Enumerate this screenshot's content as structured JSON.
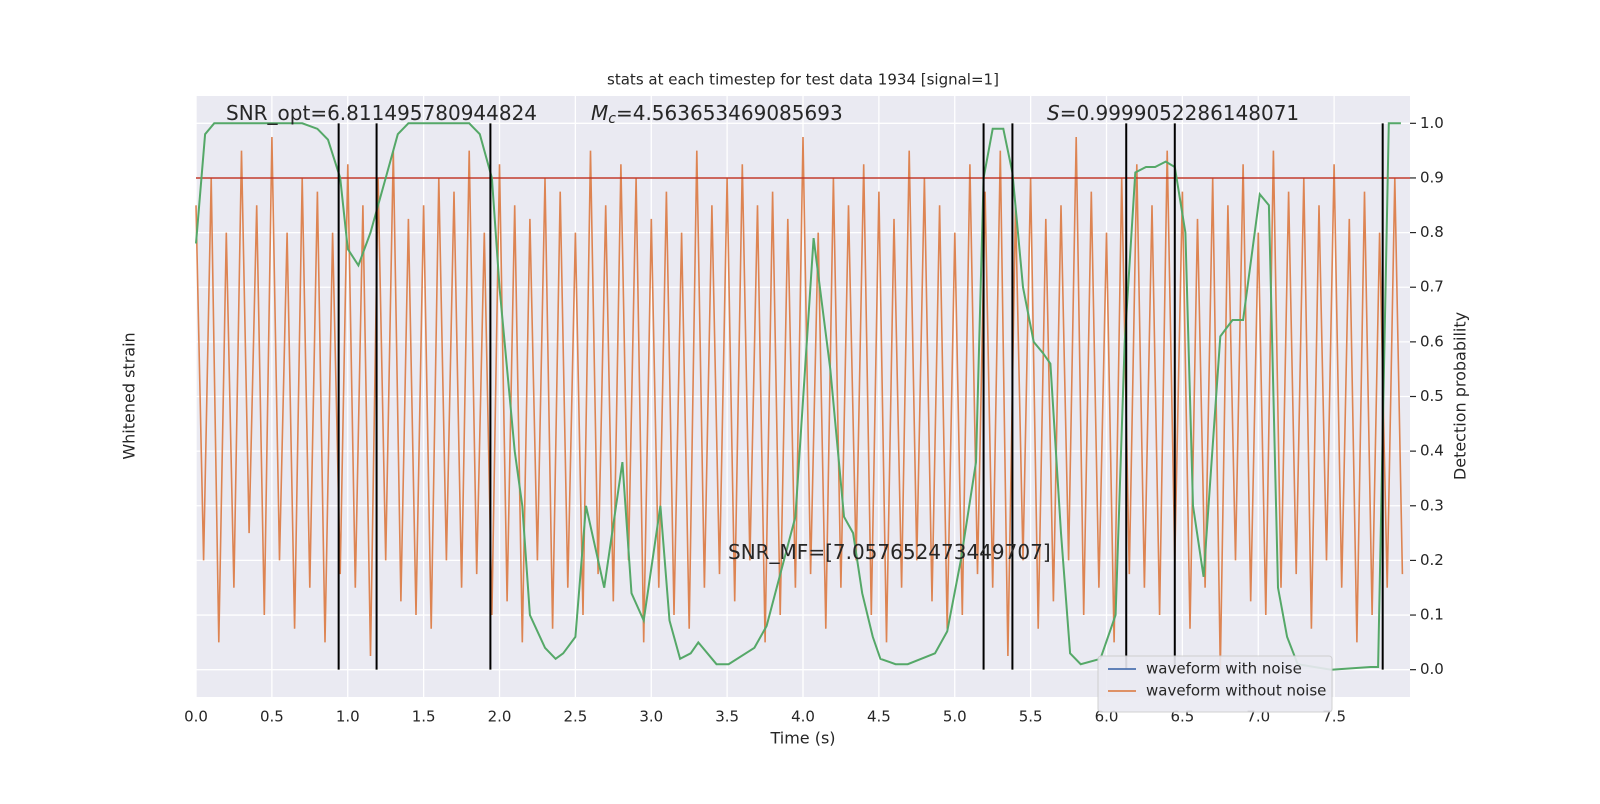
{
  "chart_data": {
    "type": "line",
    "title": "stats at each timestep for test data 1934 [signal=1]",
    "xlabel": "Time (s)",
    "ylabel": "Whitened strain",
    "y2label": "Detection probability",
    "xlim": [
      0,
      8
    ],
    "ylim": [
      -1.1,
      1.1
    ],
    "y2lim": [
      -0.05,
      1.05
    ],
    "xticks": [
      {
        "value": 0,
        "label": "0.0"
      },
      {
        "value": 0.5,
        "label": "0.5"
      },
      {
        "value": 1,
        "label": "1.0"
      },
      {
        "value": 1.5,
        "label": "1.5"
      },
      {
        "value": 2,
        "label": "2.0"
      },
      {
        "value": 2.5,
        "label": "2.5"
      },
      {
        "value": 3,
        "label": "3.0"
      },
      {
        "value": 3.5,
        "label": "3.5"
      },
      {
        "value": 4,
        "label": "4.0"
      },
      {
        "value": 4.5,
        "label": "4.5"
      },
      {
        "value": 5,
        "label": "5.0"
      },
      {
        "value": 5.5,
        "label": "5.5"
      },
      {
        "value": 6,
        "label": "6.0"
      },
      {
        "value": 6.5,
        "label": "6.5"
      },
      {
        "value": 7,
        "label": "7.0"
      },
      {
        "value": 7.5,
        "label": "7.5"
      }
    ],
    "y2ticks": [
      {
        "value": 0,
        "label": "0.0"
      },
      0.1,
      0.2,
      0.3,
      0.4,
      0.5,
      0.6,
      0.7,
      0.8,
      0.9,
      {
        "value": 1,
        "label": "1.0"
      }
    ],
    "grid": true,
    "legend": "lower right",
    "threshold": {
      "value": 0.9,
      "color": "#c0392b"
    },
    "vlines": {
      "color": "#000000",
      "x": [
        0.94,
        1.19,
        1.94,
        5.19,
        5.38,
        6.13,
        6.45,
        7.82
      ]
    },
    "annotations": [
      {
        "text": "SNR_opt=6.811495780944824"
      },
      {
        "symbol": "M",
        "subscript": "c",
        "text": "=4.563653469085693"
      },
      {
        "symbol": "S",
        "text": "=0.9999052286148071"
      },
      {
        "text": "SNR_MF=[7.057652473449707]"
      }
    ],
    "series": [
      {
        "name": "waveform with noise",
        "color": "#4c72b0"
      },
      {
        "name": "waveform without noise",
        "color": "#dd8452",
        "x": [
          0,
          0.05,
          0.1,
          0.15,
          0.2,
          0.25,
          0.3,
          0.35,
          0.4,
          0.45,
          0.5,
          0.55,
          0.6,
          0.65,
          0.7,
          0.75,
          0.8,
          0.85,
          0.9,
          0.95,
          1,
          1.05,
          1.1,
          1.15,
          1.2,
          1.25,
          1.3,
          1.35,
          1.4,
          1.45,
          1.5,
          1.55,
          1.6,
          1.65,
          1.7,
          1.75,
          1.8,
          1.85,
          1.9,
          1.95,
          2,
          2.05,
          2.1,
          2.15,
          2.2,
          2.25,
          2.3,
          2.35,
          2.4,
          2.45,
          2.5,
          2.55,
          2.6,
          2.65,
          2.7,
          2.75,
          2.8,
          2.85,
          2.9,
          2.95,
          3,
          3.05,
          3.1,
          3.15,
          3.2,
          3.25,
          3.3,
          3.35,
          3.4,
          3.45,
          3.5,
          3.55,
          3.6,
          3.65,
          3.7,
          3.75,
          3.8,
          3.85,
          3.9,
          3.95,
          4,
          4.05,
          4.1,
          4.15,
          4.2,
          4.25,
          4.3,
          4.35,
          4.4,
          4.45,
          4.5,
          4.55,
          4.6,
          4.65,
          4.7,
          4.75,
          4.8,
          4.85,
          4.9,
          4.95,
          5,
          5.05,
          5.1,
          5.15,
          5.2,
          5.25,
          5.3,
          5.35,
          5.4,
          5.45,
          5.5,
          5.55,
          5.6,
          5.65,
          5.7,
          5.75,
          5.8,
          5.85,
          5.9,
          5.95,
          6,
          6.05,
          6.1,
          6.15,
          6.2,
          6.25,
          6.3,
          6.35,
          6.4,
          6.45,
          6.5,
          6.55,
          6.6,
          6.65,
          6.7,
          6.75,
          6.8,
          6.85,
          6.9,
          6.95,
          7,
          7.05,
          7.1,
          7.15,
          7.2,
          7.25,
          7.3,
          7.35,
          7.4,
          7.45,
          7.5,
          7.55,
          7.6,
          7.65,
          7.7,
          7.75,
          7.8,
          7.85,
          7.9,
          7.95
        ],
        "values": [
          0.7,
          -0.6,
          0.8,
          -0.9,
          0.6,
          -0.7,
          0.9,
          -0.5,
          0.7,
          -0.8,
          0.95,
          -0.6,
          0.6,
          -0.85,
          0.8,
          -0.7,
          0.75,
          -0.9,
          0.6,
          -0.65,
          0.85,
          -0.7,
          0.7,
          -0.95,
          0.8,
          -0.6,
          0.9,
          -0.75,
          0.65,
          -0.8,
          0.7,
          -0.85,
          0.8,
          -0.6,
          0.75,
          -0.7,
          0.9,
          -0.65,
          0.6,
          -0.8,
          0.85,
          -0.75,
          0.7,
          -0.9,
          0.65,
          -0.6,
          0.8,
          -0.85,
          0.75,
          -0.7,
          0.6,
          -0.8,
          0.9,
          -0.65,
          0.7,
          -0.75,
          0.85,
          -0.6,
          0.8,
          -0.9,
          0.65,
          -0.7,
          0.75,
          -0.8,
          0.6,
          -0.85,
          0.9,
          -0.7,
          0.7,
          -0.65,
          0.8,
          -0.75,
          0.85,
          -0.6,
          0.7,
          -0.9,
          0.75,
          -0.8,
          0.65,
          -0.7,
          0.95,
          -0.65,
          0.6,
          -0.85,
          0.8,
          -0.7,
          0.7,
          -0.6,
          0.85,
          -0.8,
          0.75,
          -0.9,
          0.65,
          -0.7,
          0.9,
          -0.6,
          0.8,
          -0.75,
          0.7,
          -0.85,
          0.6,
          -0.8,
          0.85,
          -0.65,
          0.75,
          -0.7,
          0.9,
          -0.95,
          0.7,
          -0.6,
          0.8,
          -0.85,
          0.65,
          -0.75,
          0.7,
          -0.6,
          0.95,
          -0.8,
          0.75,
          -0.7,
          0.6,
          -0.9,
          0.8,
          -0.65,
          0.85,
          -0.7,
          0.7,
          -0.8,
          0.9,
          -0.6,
          0.75,
          -0.85,
          0.65,
          -0.7,
          0.8,
          -1.0,
          0.7,
          -0.6,
          0.85,
          -0.75,
          0.6,
          -0.8,
          0.9,
          -0.7,
          0.75,
          -0.65,
          0.8,
          -0.85,
          0.7,
          -0.6,
          0.85,
          -0.7,
          0.65,
          -0.9,
          0.75,
          -0.8,
          0.6,
          -0.7,
          0.8,
          -0.65
        ]
      },
      {
        "name": "Detection probability",
        "color": "#55a868",
        "axis": "y2",
        "x": [
          0,
          0.06,
          0.12,
          0.25,
          0.5,
          0.7,
          0.8,
          0.87,
          0.95,
          1,
          1.07,
          1.15,
          1.25,
          1.33,
          1.4,
          1.6,
          1.8,
          1.87,
          1.95,
          2,
          2.1,
          2.15,
          2.2,
          2.3,
          2.37,
          2.42,
          2.5,
          2.57,
          2.69,
          2.81,
          2.87,
          2.95,
          3.06,
          3.12,
          3.19,
          3.26,
          3.31,
          3.43,
          3.51,
          3.68,
          3.76,
          3.95,
          4.07,
          4.18,
          4.27,
          4.33,
          4.39,
          4.46,
          4.51,
          4.61,
          4.69,
          4.87,
          4.95,
          5.04,
          5.14,
          5.19,
          5.25,
          5.32,
          5.38,
          5.45,
          5.52,
          5.58,
          5.63,
          5.7,
          5.76,
          5.83,
          5.96,
          6.06,
          6.12,
          6.19,
          6.26,
          6.32,
          6.39,
          6.45,
          6.52,
          6.57,
          6.64,
          6.75,
          6.83,
          6.9,
          7.01,
          7.07,
          7.13,
          7.19,
          7.26,
          7.48,
          7.74,
          7.79,
          7.86,
          7.94
        ],
        "values": [
          0.78,
          0.98,
          1.0,
          1.0,
          1.0,
          1.0,
          0.99,
          0.97,
          0.9,
          0.77,
          0.74,
          0.8,
          0.9,
          0.98,
          1.0,
          1.0,
          1.0,
          0.98,
          0.9,
          0.7,
          0.4,
          0.3,
          0.1,
          0.04,
          0.02,
          0.03,
          0.06,
          0.3,
          0.15,
          0.38,
          0.14,
          0.09,
          0.3,
          0.09,
          0.02,
          0.03,
          0.05,
          0.01,
          0.01,
          0.04,
          0.08,
          0.28,
          0.79,
          0.55,
          0.28,
          0.25,
          0.14,
          0.06,
          0.02,
          0.01,
          0.01,
          0.03,
          0.07,
          0.2,
          0.38,
          0.9,
          0.99,
          0.99,
          0.91,
          0.7,
          0.6,
          0.58,
          0.56,
          0.25,
          0.03,
          0.01,
          0.02,
          0.1,
          0.6,
          0.91,
          0.92,
          0.92,
          0.93,
          0.92,
          0.8,
          0.3,
          0.17,
          0.61,
          0.64,
          0.64,
          0.87,
          0.85,
          0.15,
          0.06,
          0.01,
          0.0,
          0.005,
          0.005,
          1.0,
          1.0
        ]
      }
    ]
  }
}
